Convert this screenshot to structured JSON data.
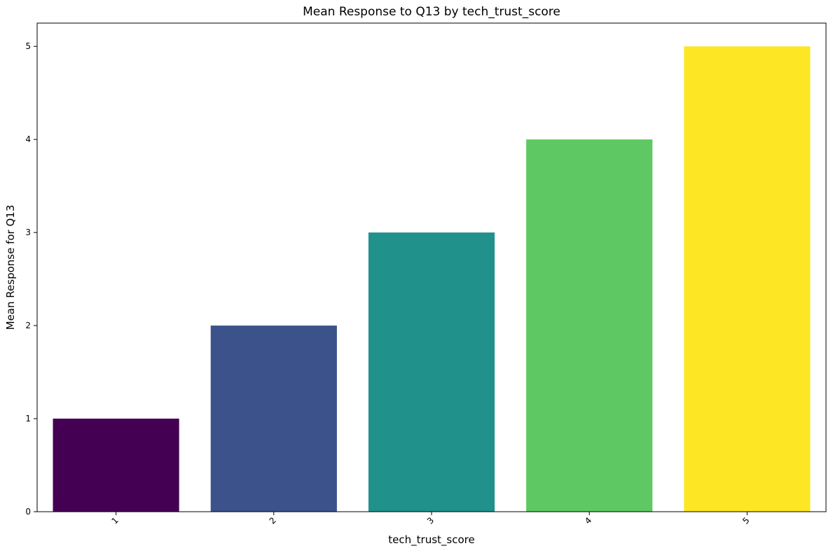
{
  "chart_data": {
    "type": "bar",
    "title": "Mean Response to Q13 by tech_trust_score",
    "xlabel": "tech_trust_score",
    "ylabel": "Mean Response for Q13",
    "categories": [
      "1",
      "2",
      "3",
      "4",
      "5"
    ],
    "values": [
      1,
      2,
      3,
      4,
      5
    ],
    "colors": [
      "#440154",
      "#3b528b",
      "#21918c",
      "#5ec962",
      "#fde725"
    ],
    "yticks": [
      "0",
      "1",
      "2",
      "3",
      "4",
      "5"
    ],
    "ylim": [
      0,
      5.25
    ],
    "grid": false,
    "legend": "none"
  }
}
